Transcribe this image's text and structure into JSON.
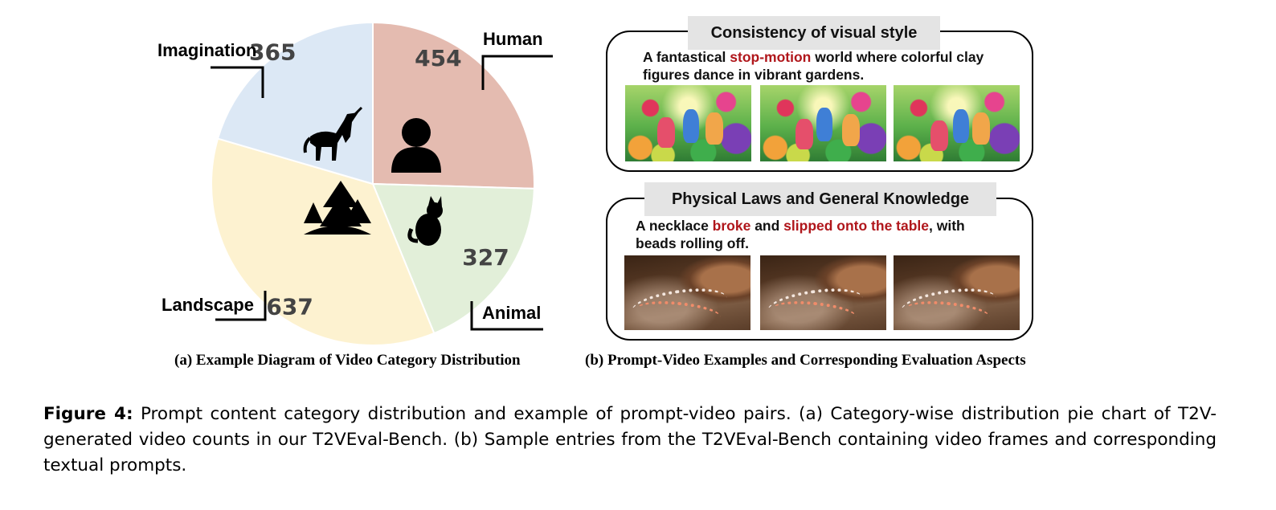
{
  "chart_data": {
    "type": "pie",
    "title": "",
    "slices": [
      {
        "label": "Human",
        "value": 454,
        "color": "#e4bbb0",
        "icon": "person-icon"
      },
      {
        "label": "Animal",
        "value": 327,
        "color": "#e2efd9",
        "icon": "cat-icon"
      },
      {
        "label": "Landscape",
        "value": 637,
        "color": "#fdf2d0",
        "icon": "trees-icon"
      },
      {
        "label": "Imagination",
        "value": 365,
        "color": "#dce8f5",
        "icon": "unicorn-icon"
      }
    ],
    "start_angle_deg": 0,
    "direction": "clockwise",
    "legend": "none (labels with leader lines)"
  },
  "panels": [
    {
      "title": "Consistency of visual style",
      "prompt_parts": [
        {
          "text": "A fantastical ",
          "highlight": false
        },
        {
          "text": "stop-motion",
          "highlight": true
        },
        {
          "text": " world where colorful clay figures dance in vibrant gardens.",
          "highlight": false
        }
      ],
      "frames_style": "clay-garden"
    },
    {
      "title": "Physical Laws and General Knowledge",
      "prompt_parts": [
        {
          "text": "A necklace ",
          "highlight": false
        },
        {
          "text": "broke",
          "highlight": true
        },
        {
          "text": " and ",
          "highlight": false
        },
        {
          "text": "slipped onto the table",
          "highlight": true
        },
        {
          "text": ", with beads rolling off.",
          "highlight": false
        }
      ],
      "frames_style": "necklace"
    }
  ],
  "captions": {
    "a": "(a) Example Diagram of Video Category Distribution",
    "b": "(b) Prompt-Video Examples and Corresponding Evaluation Aspects"
  },
  "figure_caption": {
    "label": "Figure 4:",
    "text": " Prompt content category distribution and example of prompt-video pairs. (a) Category-wise distribution pie chart of T2V-generated video counts in our T2VEval-Bench. (b) Sample entries from the T2VEval-Bench containing video frames and corresponding textual prompts."
  },
  "highlight_color": "#b0161b"
}
